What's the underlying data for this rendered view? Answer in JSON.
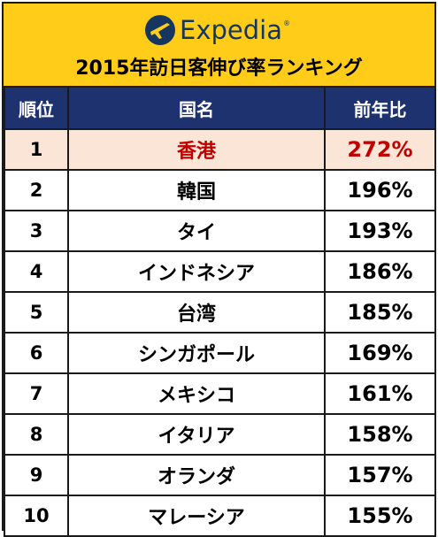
{
  "header": {
    "brand": "Expedia",
    "brand_mark": "®",
    "logo_icon": "globe-plane-icon",
    "title": "2015年訪日客伸び率ランキング"
  },
  "table": {
    "columns": [
      "順位",
      "国名",
      "前年比"
    ],
    "rows": [
      {
        "rank": "1",
        "country": "香港",
        "growth": "272%",
        "highlight": true
      },
      {
        "rank": "2",
        "country": "韓国",
        "growth": "196%"
      },
      {
        "rank": "3",
        "country": "タイ",
        "growth": "193%"
      },
      {
        "rank": "4",
        "country": "インドネシア",
        "growth": "186%"
      },
      {
        "rank": "5",
        "country": "台湾",
        "growth": "185%"
      },
      {
        "rank": "6",
        "country": "シンガポール",
        "growth": "169%"
      },
      {
        "rank": "7",
        "country": "メキシコ",
        "growth": "161%"
      },
      {
        "rank": "8",
        "country": "イタリア",
        "growth": "158%"
      },
      {
        "rank": "9",
        "country": "オランダ",
        "growth": "157%"
      },
      {
        "rank": "10",
        "country": "マレーシア",
        "growth": "155%"
      }
    ]
  },
  "colors": {
    "banner": "#ffcc1a",
    "header_row": "#1f3270",
    "highlight_row": "#fbe5d6",
    "highlight_text": "#c00000",
    "brand": "#15365f"
  }
}
